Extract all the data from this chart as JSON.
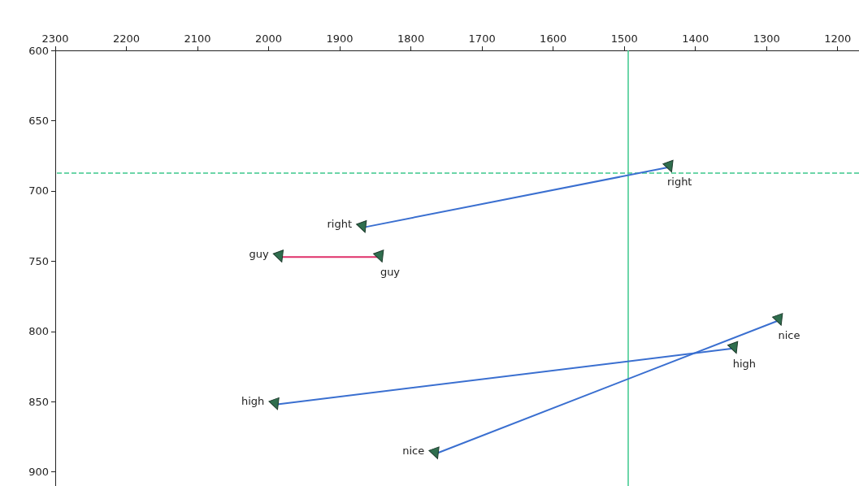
{
  "chart_data": {
    "type": "line",
    "series": [
      {
        "name": "right",
        "color": "#3a6fd0",
        "x": [
          1867,
          1436
        ],
        "values": [
          726,
          683
        ]
      },
      {
        "name": "guy",
        "color": "#e0306a",
        "x": [
          1984,
          1843
        ],
        "values": [
          747,
          747
        ]
      },
      {
        "name": "high",
        "color": "#3a6fd0",
        "x": [
          1990,
          1345
        ],
        "values": [
          852,
          812
        ]
      },
      {
        "name": "nice",
        "color": "#3a6fd0",
        "x": [
          1765,
          1282
        ],
        "values": [
          887,
          792
        ]
      }
    ],
    "xlim": [
      2300,
      1170
    ],
    "xticks": [
      2300,
      2200,
      2100,
      2000,
      1900,
      1800,
      1700,
      1600,
      1500,
      1400,
      1300,
      1200
    ],
    "ylim": [
      910,
      600
    ],
    "yticks": [
      600,
      650,
      700,
      750,
      800,
      850,
      900
    ],
    "ref_lines": [
      {
        "axis": "y",
        "value": 687,
        "color": "#3cc88c",
        "line_style": "dashed"
      },
      {
        "axis": "x",
        "value": 1495,
        "color": "#3cc88c",
        "line_style": "solid"
      }
    ],
    "marker": "triangle",
    "line_style": "solid",
    "grid": false,
    "legend": false
  }
}
